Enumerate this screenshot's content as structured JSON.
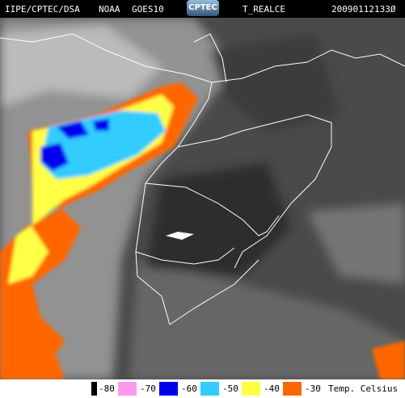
{
  "header": {
    "agency": "IIPE/CPTEC/DSA",
    "source": "NOAA",
    "satellite": "GOES10",
    "logo": "CPTEC",
    "product": "T_REALCE",
    "timestamp": "20090112133Ø"
  },
  "legend": {
    "first_color": "#000000",
    "entries": [
      {
        "label": "-80",
        "color": "#ff99ee"
      },
      {
        "label": "-70",
        "color": "#0000ee"
      },
      {
        "label": "-60",
        "color": "#33ccff"
      },
      {
        "label": "-50",
        "color": "#ffff44"
      },
      {
        "label": "-40",
        "color": "#ff6600"
      },
      {
        "label": "-30",
        "color": null
      }
    ],
    "unit": "Temp. Celsius"
  }
}
